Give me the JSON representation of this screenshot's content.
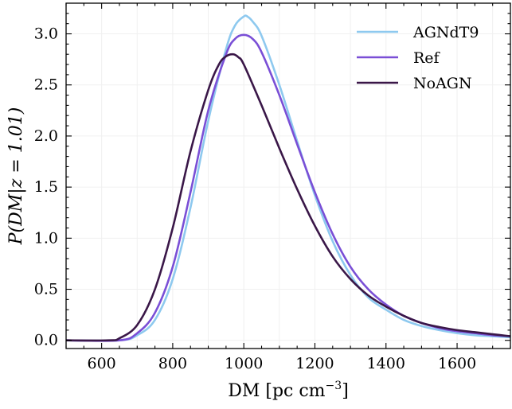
{
  "chart_data": {
    "type": "line",
    "xlabel": "DM  [pc cm",
    "xlabel_sup": "−3",
    "xlabel_close": "]",
    "ylabel": "P(DM|z = 1.01)",
    "xlim": [
      500,
      1750
    ],
    "ylim": [
      -0.08,
      3.3
    ],
    "x_ticks": [
      600,
      800,
      1000,
      1200,
      1400,
      1600
    ],
    "x_tick_labels": [
      "600",
      "800",
      "1000",
      "1200",
      "1400",
      "1600"
    ],
    "y_ticks": [
      0.0,
      0.5,
      1.0,
      1.5,
      2.0,
      2.5,
      3.0
    ],
    "y_tick_labels": [
      "0.0",
      "0.5",
      "1.0",
      "1.5",
      "2.0",
      "2.5",
      "3.0"
    ],
    "grid": true,
    "legend_position": "top-right",
    "series": [
      {
        "name": "AGNdT9",
        "color": "#8ec9ef",
        "x": [
          500,
          650,
          700,
          750,
          800,
          850,
          900,
          950,
          975,
          1000,
          1010,
          1025,
          1050,
          1100,
          1150,
          1200,
          1250,
          1300,
          1350,
          1400,
          1450,
          1500,
          1550,
          1600,
          1650,
          1700,
          1750
        ],
        "y": [
          0.0,
          0.0,
          0.05,
          0.2,
          0.6,
          1.3,
          2.15,
          2.85,
          3.08,
          3.17,
          3.17,
          3.12,
          2.98,
          2.5,
          1.95,
          1.42,
          0.97,
          0.64,
          0.42,
          0.3,
          0.2,
          0.14,
          0.1,
          0.07,
          0.05,
          0.04,
          0.03
        ]
      },
      {
        "name": "Ref",
        "color": "#7a4fd6",
        "x": [
          500,
          650,
          700,
          750,
          800,
          850,
          900,
          950,
          975,
          1000,
          1025,
          1050,
          1100,
          1150,
          1200,
          1250,
          1300,
          1350,
          1400,
          1450,
          1500,
          1550,
          1600,
          1650,
          1700,
          1750
        ],
        "y": [
          0.0,
          0.0,
          0.07,
          0.27,
          0.72,
          1.45,
          2.25,
          2.8,
          2.95,
          2.99,
          2.95,
          2.82,
          2.4,
          1.92,
          1.45,
          1.04,
          0.72,
          0.5,
          0.35,
          0.24,
          0.17,
          0.12,
          0.09,
          0.07,
          0.05,
          0.04
        ]
      },
      {
        "name": "NoAGN",
        "color": "#3a1748",
        "x": [
          500,
          620,
          650,
          700,
          750,
          800,
          850,
          900,
          930,
          950,
          970,
          985,
          1000,
          1050,
          1100,
          1150,
          1200,
          1250,
          1300,
          1350,
          1400,
          1450,
          1500,
          1550,
          1600,
          1650,
          1700,
          1750
        ],
        "y": [
          0.0,
          0.0,
          0.02,
          0.15,
          0.5,
          1.1,
          1.85,
          2.45,
          2.7,
          2.78,
          2.8,
          2.77,
          2.7,
          2.3,
          1.88,
          1.48,
          1.12,
          0.82,
          0.6,
          0.44,
          0.33,
          0.24,
          0.17,
          0.13,
          0.1,
          0.08,
          0.06,
          0.04
        ]
      }
    ]
  }
}
